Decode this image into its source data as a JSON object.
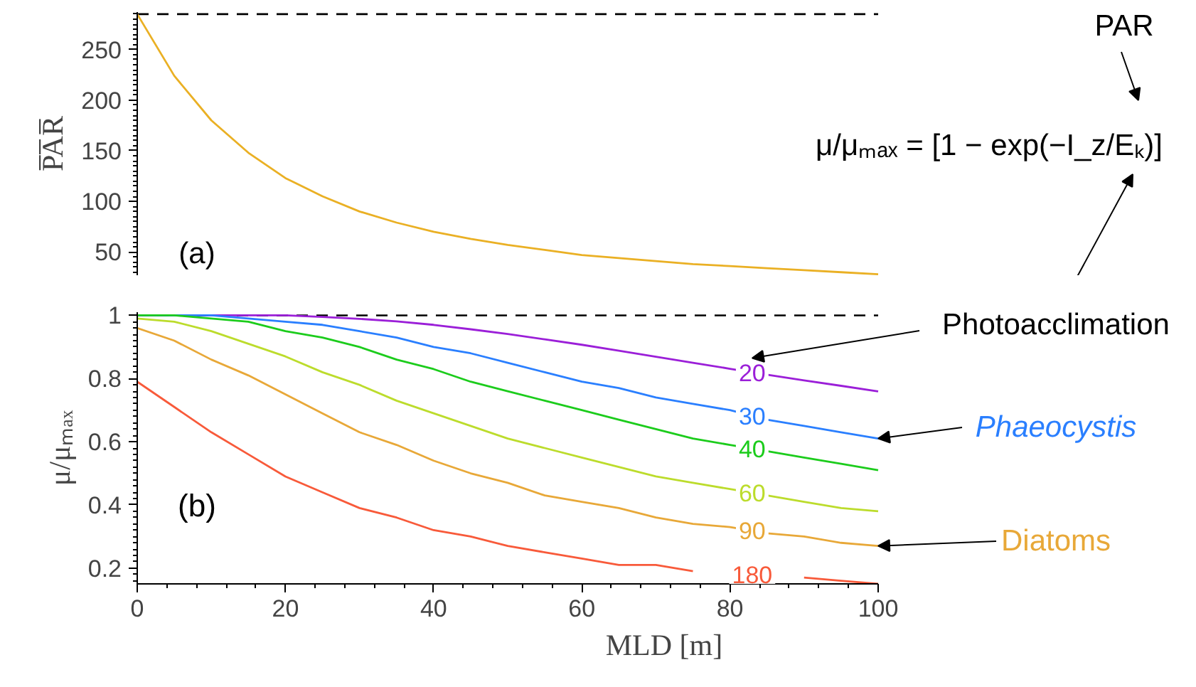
{
  "chart_data": [
    {
      "type": "line",
      "ylabel": "P̅A̅R̅",
      "x": [
        0,
        5,
        10,
        15,
        20,
        25,
        30,
        35,
        40,
        45,
        50,
        55,
        60,
        65,
        70,
        75,
        80,
        85,
        90,
        95,
        100
      ],
      "series": [
        {
          "color": "#eab024",
          "values": [
            285,
            224,
            180,
            148,
            123,
            105,
            90,
            79,
            70,
            63,
            57,
            52,
            47,
            44,
            41,
            38,
            36,
            34,
            32,
            30,
            28
          ]
        }
      ],
      "xlim": [
        0,
        100
      ],
      "ylim": [
        27,
        287
      ],
      "yticks": [
        50,
        100,
        150,
        200,
        250
      ],
      "tick_labels": "y",
      "ref_lines": [
        {
          "axis": "y",
          "value": 285,
          "label": null,
          "line_style": "dashed",
          "color": "#000000"
        }
      ],
      "annotations": [
        "(a)",
        "PAR",
        "μ/μₘₐₓ = [1 − exp(−I_z/Eₖ)]"
      ]
    },
    {
      "type": "line",
      "xlabel": "MLD [m]",
      "ylabel": "μ/μₘₐₓ",
      "x": [
        0,
        5,
        10,
        15,
        20,
        25,
        30,
        35,
        40,
        45,
        50,
        55,
        60,
        65,
        70,
        75,
        80,
        85,
        90,
        95,
        100
      ],
      "series": [
        {
          "name": "20",
          "color": "#9b1fd8",
          "values": [
            1.0,
            1.0,
            1.0,
            1.0,
            1.0,
            0.995,
            0.989,
            0.981,
            0.97,
            0.956,
            0.941,
            0.924,
            0.907,
            0.888,
            0.869,
            0.85,
            0.831,
            0.812,
            0.794,
            0.777,
            0.759
          ]
        },
        {
          "name": "30",
          "color": "#2a7fff",
          "values": [
            1.0,
            1.0,
            1.0,
            0.99,
            0.98,
            0.97,
            0.95,
            0.93,
            0.9,
            0.88,
            0.85,
            0.82,
            0.79,
            0.77,
            0.74,
            0.72,
            0.7,
            0.67,
            0.65,
            0.63,
            0.61
          ]
        },
        {
          "name": "40",
          "color": "#1ccc1c",
          "values": [
            1.0,
            1.0,
            0.99,
            0.98,
            0.95,
            0.93,
            0.9,
            0.86,
            0.83,
            0.79,
            0.76,
            0.73,
            0.7,
            0.67,
            0.64,
            0.61,
            0.59,
            0.57,
            0.55,
            0.53,
            0.51
          ]
        },
        {
          "name": "60",
          "color": "#bcdc2c",
          "values": [
            0.99,
            0.98,
            0.95,
            0.91,
            0.87,
            0.82,
            0.78,
            0.73,
            0.69,
            0.65,
            0.61,
            0.58,
            0.55,
            0.52,
            0.49,
            0.47,
            0.45,
            0.43,
            0.41,
            0.39,
            0.38
          ]
        },
        {
          "name": "90",
          "color": "#e8a838",
          "values": [
            0.96,
            0.92,
            0.86,
            0.81,
            0.75,
            0.69,
            0.63,
            0.59,
            0.54,
            0.5,
            0.47,
            0.43,
            0.41,
            0.39,
            0.36,
            0.34,
            0.33,
            0.31,
            0.3,
            0.28,
            0.27
          ]
        },
        {
          "name": "180",
          "color": "#f85a3a",
          "values": [
            0.79,
            0.71,
            0.63,
            0.56,
            0.49,
            0.44,
            0.39,
            0.36,
            0.32,
            0.3,
            0.27,
            0.25,
            0.23,
            0.21,
            0.21,
            0.19,
            null,
            null,
            0.17,
            0.16,
            0.15
          ]
        }
      ],
      "xlim": [
        0,
        100
      ],
      "ylim": [
        0.15,
        1.01
      ],
      "xticks": [
        0,
        20,
        40,
        60,
        80,
        100
      ],
      "yticks": [
        0.2,
        0.4,
        0.6,
        0.8,
        1
      ],
      "ref_lines": [
        {
          "axis": "y",
          "value": 1,
          "label": null,
          "line_style": "dashed",
          "color": "#000000"
        }
      ],
      "annotations": [
        "(b)",
        "Photoacclimation",
        {
          "text": "Phaeocystis",
          "x": 100,
          "y": 0.61
        },
        {
          "text": "Diatoms",
          "x": 100,
          "y": 0.27
        }
      ]
    }
  ]
}
